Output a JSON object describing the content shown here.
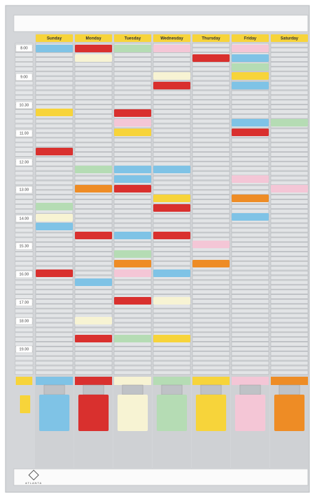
{
  "header": {
    "days": [
      "Sunday",
      "Monday",
      "Tuesday",
      "Wednesday",
      "Thursday",
      "Friday",
      "Saturday"
    ]
  },
  "times": [
    "8.00",
    "9.00",
    "10.30",
    "11.00",
    "12.00",
    "13.00",
    "14.00",
    "15.30",
    "16.00",
    "17.00",
    "18.00",
    "19.00"
  ],
  "brand": "ATLANTA"
}
